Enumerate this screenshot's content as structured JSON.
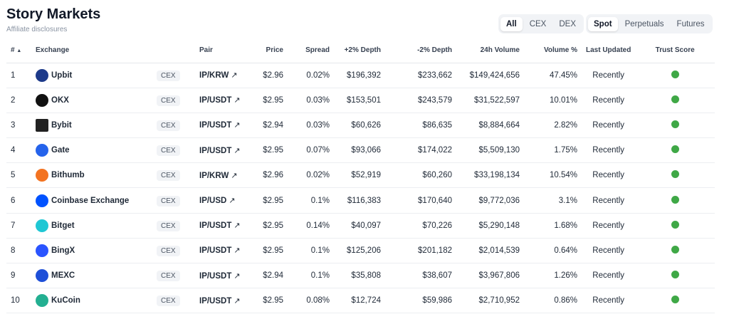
{
  "header": {
    "title": "Story Markets",
    "subtitle": "Affiliate disclosures"
  },
  "filters": {
    "type": [
      {
        "label": "All",
        "active": true
      },
      {
        "label": "CEX",
        "active": false
      },
      {
        "label": "DEX",
        "active": false
      }
    ],
    "market": [
      {
        "label": "Spot",
        "active": true
      },
      {
        "label": "Perpetuals",
        "active": false
      },
      {
        "label": "Futures",
        "active": false
      }
    ]
  },
  "columns": {
    "rank": "#",
    "sort_icon": "▲",
    "exchange": "Exchange",
    "pair": "Pair",
    "price": "Price",
    "spread": "Spread",
    "depth_up": "+2% Depth",
    "depth_down": "-2% Depth",
    "volume": "24h Volume",
    "volume_pct": "Volume %",
    "updated": "Last Updated",
    "trust": "Trust Score"
  },
  "trust_color": "#3fa846",
  "rows": [
    {
      "rank": "1",
      "exchange": "Upbit",
      "logo": "UP",
      "logo_color": "#1d3a8a",
      "type": "CEX",
      "pair": "IP/KRW",
      "price": "$2.96",
      "spread": "0.02%",
      "depth_up": "$196,392",
      "depth_down": "$233,662",
      "volume": "$149,424,656",
      "volume_pct": "47.45%",
      "updated": "Recently"
    },
    {
      "rank": "2",
      "exchange": "OKX",
      "logo": "✕",
      "logo_color": "#111111",
      "type": "CEX",
      "pair": "IP/USDT",
      "price": "$2.95",
      "spread": "0.03%",
      "depth_up": "$153,501",
      "depth_down": "$243,579",
      "volume": "$31,522,597",
      "volume_pct": "10.01%",
      "updated": "Recently"
    },
    {
      "rank": "3",
      "exchange": "Bybit",
      "logo": "BYBIT",
      "logo_color": "#222222",
      "type": "CEX",
      "pair": "IP/USDT",
      "price": "$2.94",
      "spread": "0.03%",
      "depth_up": "$60,626",
      "depth_down": "$86,635",
      "volume": "$8,884,664",
      "volume_pct": "2.82%",
      "updated": "Recently"
    },
    {
      "rank": "4",
      "exchange": "Gate",
      "logo": "G",
      "logo_color": "#2563eb",
      "type": "CEX",
      "pair": "IP/USDT",
      "price": "$2.95",
      "spread": "0.07%",
      "depth_up": "$93,066",
      "depth_down": "$174,022",
      "volume": "$5,509,130",
      "volume_pct": "1.75%",
      "updated": "Recently"
    },
    {
      "rank": "5",
      "exchange": "Bithumb",
      "logo": "b",
      "logo_color": "#f37321",
      "type": "CEX",
      "pair": "IP/KRW",
      "price": "$2.96",
      "spread": "0.02%",
      "depth_up": "$52,919",
      "depth_down": "$60,260",
      "volume": "$33,198,134",
      "volume_pct": "10.54%",
      "updated": "Recently"
    },
    {
      "rank": "6",
      "exchange": "Coinbase Exchange",
      "logo": "C",
      "logo_color": "#0052ff",
      "type": "CEX",
      "pair": "IP/USD",
      "price": "$2.95",
      "spread": "0.1%",
      "depth_up": "$116,383",
      "depth_down": "$170,640",
      "volume": "$9,772,036",
      "volume_pct": "3.1%",
      "updated": "Recently"
    },
    {
      "rank": "7",
      "exchange": "Bitget",
      "logo": "S",
      "logo_color": "#1fc7d4",
      "type": "CEX",
      "pair": "IP/USDT",
      "price": "$2.95",
      "spread": "0.14%",
      "depth_up": "$40,097",
      "depth_down": "$70,226",
      "volume": "$5,290,148",
      "volume_pct": "1.68%",
      "updated": "Recently"
    },
    {
      "rank": "8",
      "exchange": "BingX",
      "logo": "X",
      "logo_color": "#2a54ff",
      "type": "CEX",
      "pair": "IP/USDT",
      "price": "$2.95",
      "spread": "0.1%",
      "depth_up": "$125,206",
      "depth_down": "$201,182",
      "volume": "$2,014,539",
      "volume_pct": "0.64%",
      "updated": "Recently"
    },
    {
      "rank": "9",
      "exchange": "MEXC",
      "logo": "M",
      "logo_color": "#1e4fd8",
      "type": "CEX",
      "pair": "IP/USDT",
      "price": "$2.94",
      "spread": "0.1%",
      "depth_up": "$35,808",
      "depth_down": "$38,607",
      "volume": "$3,967,806",
      "volume_pct": "1.26%",
      "updated": "Recently"
    },
    {
      "rank": "10",
      "exchange": "KuCoin",
      "logo": "K",
      "logo_color": "#23af91",
      "type": "CEX",
      "pair": "IP/USDT",
      "price": "$2.95",
      "spread": "0.08%",
      "depth_up": "$12,724",
      "depth_down": "$59,986",
      "volume": "$2,710,952",
      "volume_pct": "0.86%",
      "updated": "Recently"
    }
  ]
}
